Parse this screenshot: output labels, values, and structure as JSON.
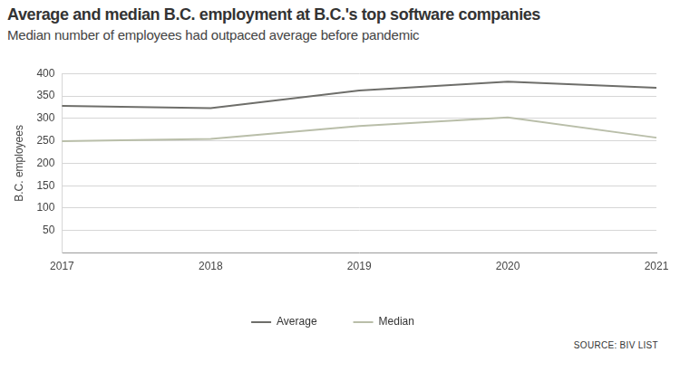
{
  "chart_data": {
    "type": "line",
    "title": "Average and median B.C. employment at B.C.'s top software companies",
    "subtitle": "Median number of employees had outpaced average before pandemic",
    "y_label": "B.C. employees",
    "source": "SOURCE: BIV LIST",
    "categories": [
      "2017",
      "2018",
      "2019",
      "2020",
      "2021"
    ],
    "series": [
      {
        "name": "Average",
        "color": "#6e6e6a",
        "values": [
          328,
          323,
          362,
          382,
          368
        ]
      },
      {
        "name": "Median",
        "color": "#b9bea9",
        "values": [
          249,
          254,
          283,
          302,
          257
        ]
      }
    ],
    "ylim": [
      0,
      400
    ],
    "yticks": [
      50,
      100,
      150,
      200,
      250,
      300,
      350,
      400
    ],
    "grid": true,
    "legend": "bottom"
  }
}
